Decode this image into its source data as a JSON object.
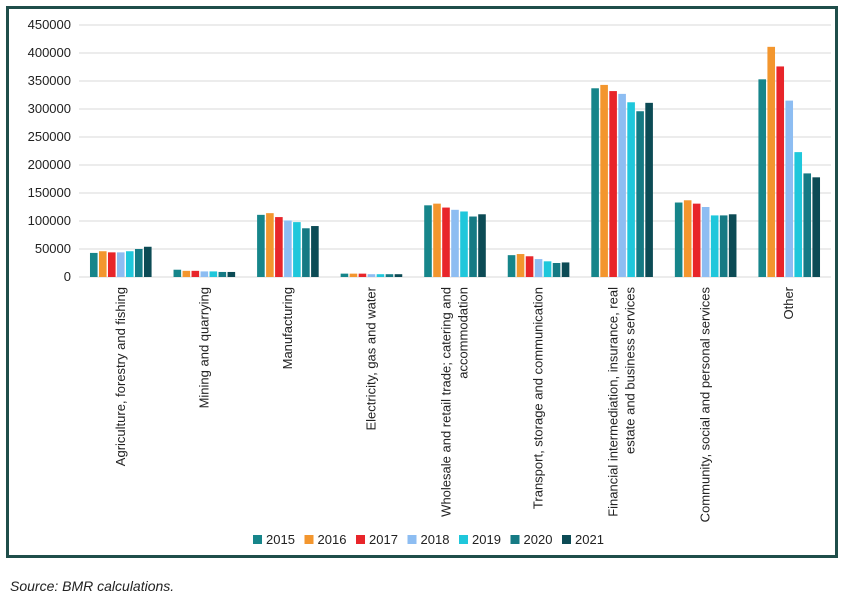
{
  "colors": {
    "2015": "#16858a",
    "2016": "#f3962e",
    "2017": "#e8252a",
    "2018": "#8dbdf2",
    "2019": "#1fc7db",
    "2020": "#157a84",
    "2021": "#0c4b55",
    "frame": "#1f4e4a",
    "grid": "#d9d9d9"
  },
  "source_note": "Source: BMR calculations.",
  "chart_data": {
    "type": "bar",
    "title": "",
    "xlabel": "",
    "ylabel": "",
    "ylim": [
      0,
      450000
    ],
    "yticks": [
      "0",
      "50000",
      "100000",
      "150000",
      "200000",
      "250000",
      "300000",
      "350000",
      "400000",
      "450000"
    ],
    "grid": true,
    "legend_position": "bottom",
    "categories": [
      [
        "Agriculture, forestry and fishing"
      ],
      [
        "Mining and quarrying"
      ],
      [
        "Manufacturing"
      ],
      [
        "Electricity, gas and water"
      ],
      [
        "Wholesale and retail trade; catering and",
        "accommodation"
      ],
      [
        "Transport, storage and communication"
      ],
      [
        "Financial intermediation, insurance, real",
        "estate and business services"
      ],
      [
        "Community, social and personal services"
      ],
      [
        "Other"
      ]
    ],
    "series": [
      {
        "name": "2015",
        "values": [
          43000,
          13000,
          111000,
          6000,
          128000,
          39000,
          337000,
          133000,
          353000
        ]
      },
      {
        "name": "2016",
        "values": [
          46000,
          11000,
          114000,
          6000,
          131000,
          41000,
          343000,
          137000,
          411000
        ]
      },
      {
        "name": "2017",
        "values": [
          44000,
          11000,
          107000,
          6000,
          124000,
          37000,
          332000,
          131000,
          376000
        ]
      },
      {
        "name": "2018",
        "values": [
          44000,
          10000,
          101000,
          5000,
          120000,
          32000,
          327000,
          125000,
          315000
        ]
      },
      {
        "name": "2019",
        "values": [
          46000,
          10000,
          98000,
          5000,
          117000,
          28000,
          312000,
          110000,
          223000
        ]
      },
      {
        "name": "2020",
        "values": [
          50000,
          9000,
          87000,
          5000,
          108000,
          25000,
          296000,
          110000,
          185000
        ]
      },
      {
        "name": "2021",
        "values": [
          54000,
          9000,
          91000,
          5000,
          112000,
          26000,
          311000,
          112000,
          178000
        ]
      }
    ]
  }
}
